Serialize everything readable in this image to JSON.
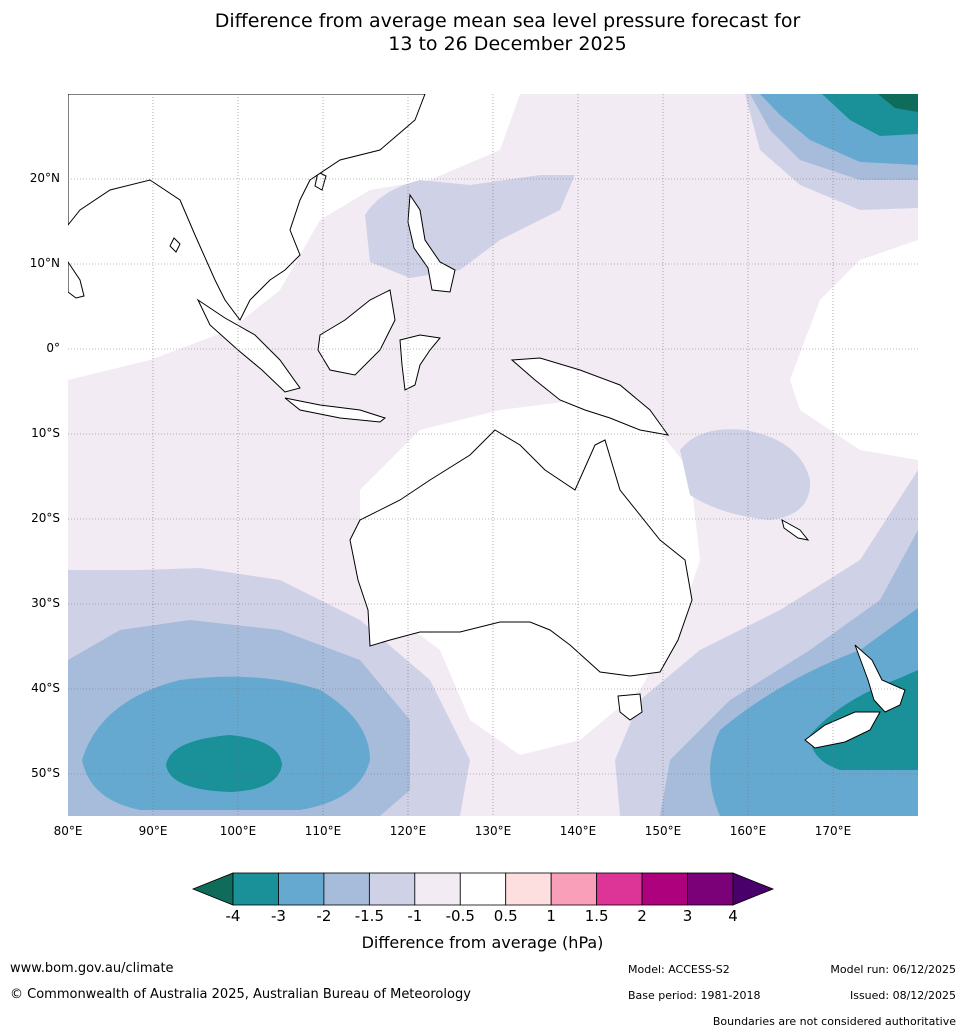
{
  "title": {
    "line1": "Difference from average mean sea level pressure forecast for",
    "line2": "13 to 26 December 2025"
  },
  "map": {
    "lat_labels": [
      "20°N",
      "10°N",
      "0°",
      "10°S",
      "20°S",
      "30°S",
      "40°S",
      "50°S"
    ],
    "lon_labels": [
      "80°E",
      "90°E",
      "100°E",
      "110°E",
      "120°E",
      "130°E",
      "140°E",
      "150°E",
      "160°E",
      "170°E"
    ]
  },
  "legend": {
    "label": "Difference from average (hPa)",
    "ticks": [
      "-4",
      "-3",
      "-2",
      "-1.5",
      "-1",
      "-0.5",
      "0.5",
      "1",
      "1.5",
      "2",
      "3",
      "4"
    ],
    "colors": {
      "lt_-4": "#0f6b5a",
      "-4_-3": "#1a9098",
      "-3_-2": "#66a9d0",
      "-2_-1.5": "#a7bcdb",
      "-1.5_-1": "#cfd2e6",
      "-1_-0.5": "#f2ebf4",
      "-0.5_0.5": "#ffffff",
      "0.5_1": "#fedfdf",
      "1_1.5": "#f99fba",
      "1.5_2": "#dd3497",
      "2_3": "#ae017e",
      "3_4": "#7a0177",
      "gt_4": "#49006a"
    }
  },
  "footer": {
    "website": "www.bom.gov.au/climate",
    "copyright": "© Commonwealth of Australia 2025, Australian Bureau of Meteorology",
    "model": "Model: ACCESS-S2",
    "base_period": "Base period: 1981-2018",
    "model_run": "Model run: 06/12/2025",
    "issued": "Issued: 08/12/2025",
    "disclaimer": "Boundaries are not considered authoritative"
  }
}
